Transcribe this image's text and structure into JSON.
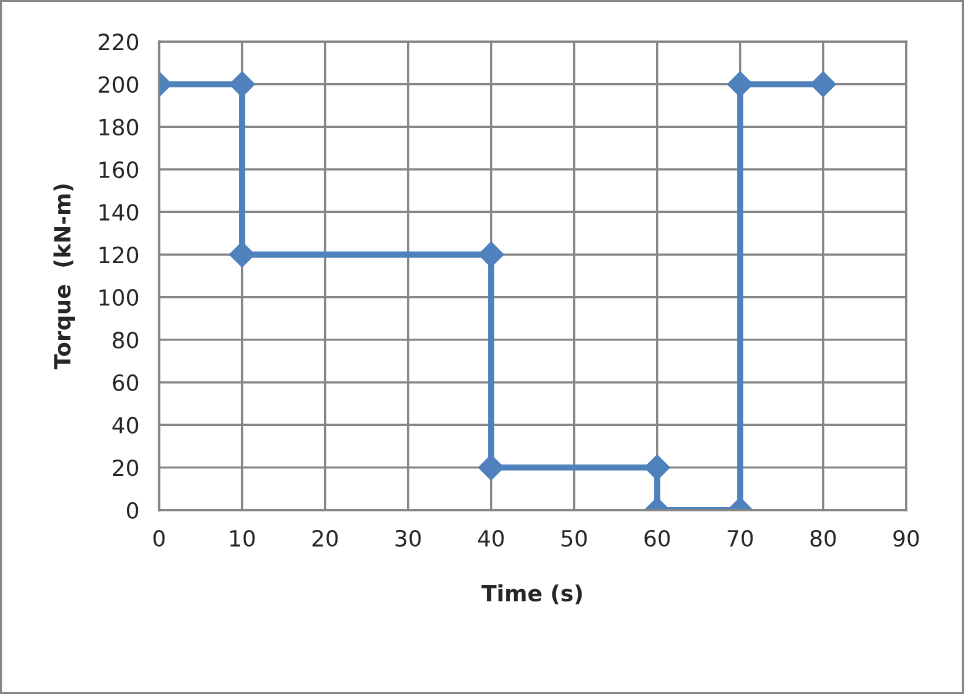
{
  "chart_data": {
    "type": "line",
    "xlabel": "Time (s)",
    "ylabel": "Torque  (kN-m)",
    "series": [
      {
        "color": "#4f81bd",
        "x": [
          0,
          10,
          10,
          40,
          40,
          60,
          60,
          70,
          70,
          80
        ],
        "values": [
          200,
          200,
          120,
          120,
          20,
          20,
          0,
          0,
          200,
          200
        ]
      }
    ],
    "xlim": [
      0,
      90
    ],
    "xticks": [
      0,
      10,
      20,
      30,
      40,
      50,
      60,
      70,
      80,
      90
    ],
    "ylim": [
      0,
      220
    ],
    "yticks": [
      0,
      20,
      40,
      60,
      80,
      100,
      120,
      140,
      160,
      180,
      200,
      220
    ],
    "grid": true,
    "marker": "diamond",
    "line_style": "solid"
  }
}
